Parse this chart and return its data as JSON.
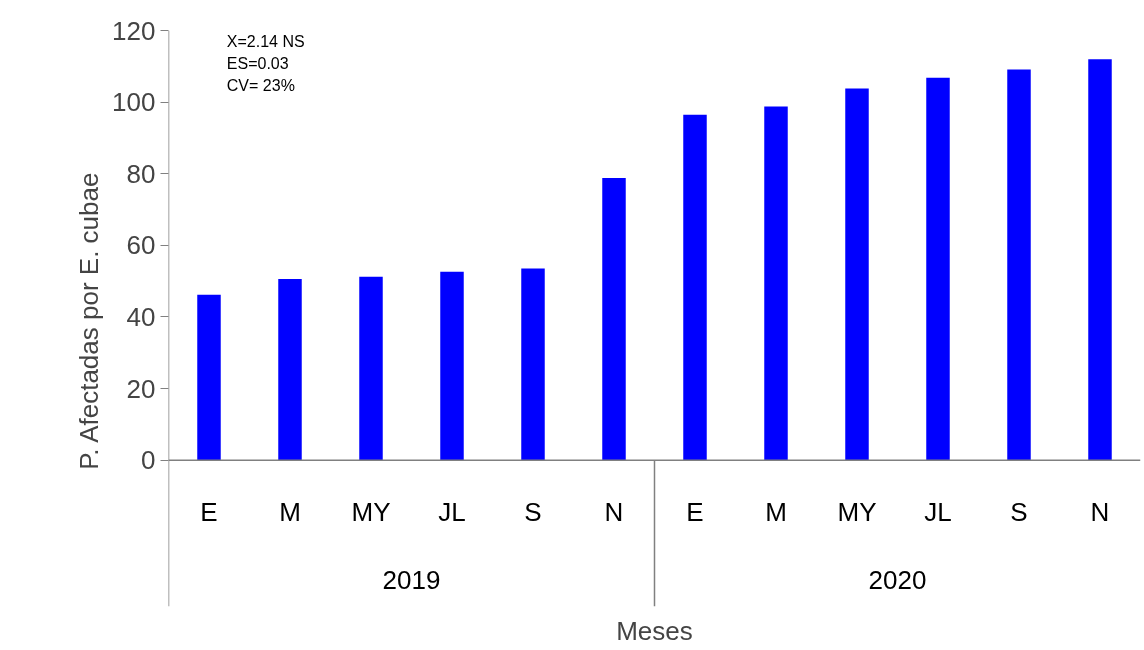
{
  "chart_data": {
    "type": "bar",
    "xlabel": "Meses",
    "ylabel": "P. Afectadas por E. cubae",
    "categories": [
      "E",
      "M",
      "MY",
      "JL",
      "S",
      "N",
      "E",
      "M",
      "MY",
      "JL",
      "S",
      "N"
    ],
    "values": [
      46.2,
      50.6,
      51.2,
      52.6,
      53.5,
      78.8,
      96.5,
      98.8,
      103.8,
      106.8,
      109.1,
      112
    ],
    "color": "#0000ff",
    "ylim": [
      0,
      120
    ],
    "yticks": [
      0,
      20,
      40,
      60,
      80,
      100,
      120
    ],
    "annotations": [
      "X=2.14 NS",
      "ES=0.03",
      "CV= 23%",
      "2019",
      "2020"
    ]
  }
}
